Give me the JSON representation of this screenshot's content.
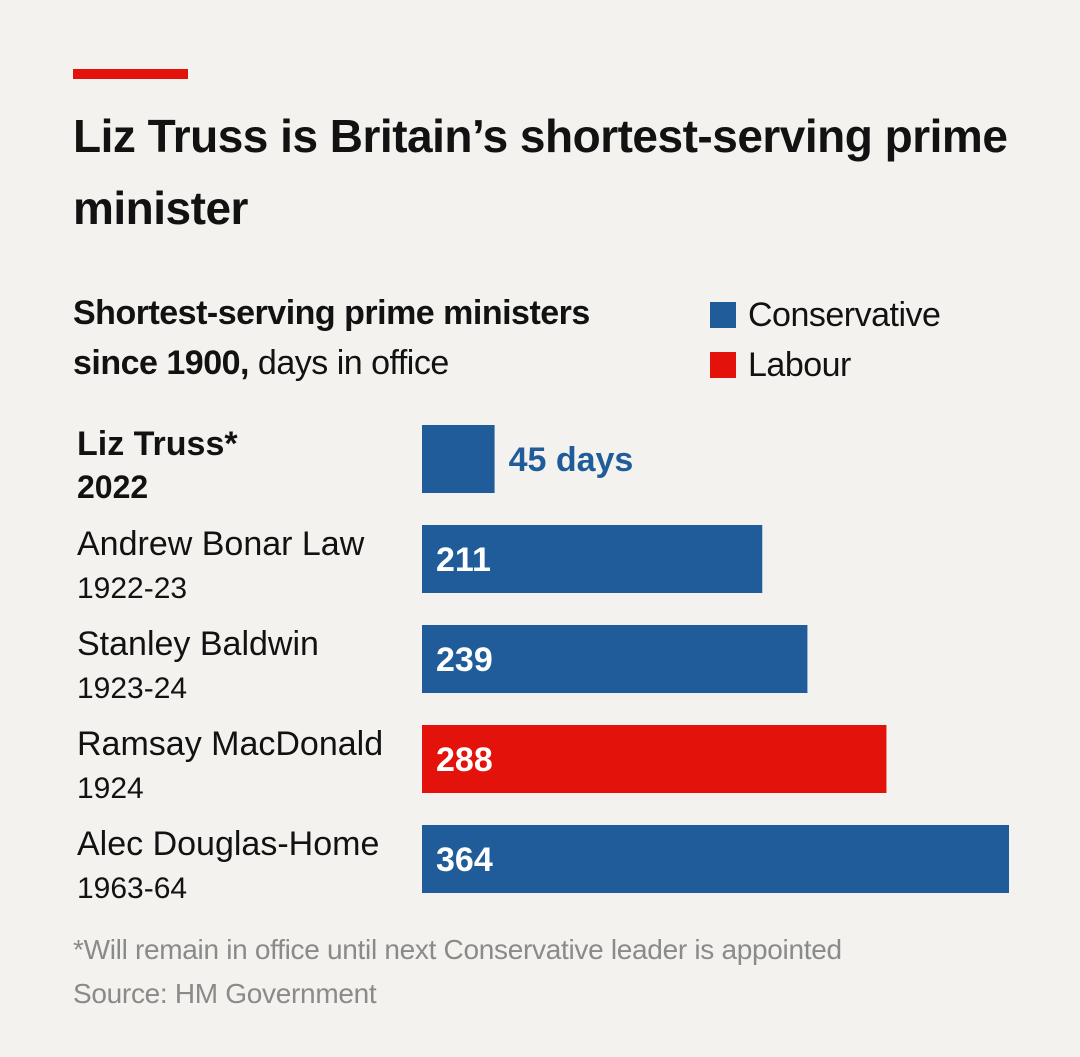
{
  "headline": "Liz Truss is Britain’s shortest-serving prime minister",
  "subtitle_bold": "Shortest-serving prime ministers since 1900,",
  "subtitle_rest": " days in office",
  "legend": [
    {
      "label": "Conservative",
      "color": "#1f5c99"
    },
    {
      "label": "Labour",
      "color": "#e3120b"
    }
  ],
  "chart_data": {
    "type": "bar",
    "orientation": "horizontal",
    "categories": [
      "Liz Truss*",
      "Andrew Bonar Law",
      "Stanley Baldwin",
      "Ramsay MacDonald",
      "Alec Douglas-Home"
    ],
    "years": [
      "2022",
      "1922-23",
      "1923-24",
      "1924",
      "1963-64"
    ],
    "values": [
      45,
      211,
      239,
      288,
      364
    ],
    "value_labels": [
      "45 days",
      "211",
      "239",
      "288",
      "364"
    ],
    "party": [
      "Conservative",
      "Conservative",
      "Conservative",
      "Labour",
      "Conservative"
    ],
    "colors": [
      "#1f5c99",
      "#1f5c99",
      "#1f5c99",
      "#e3120b",
      "#1f5c99"
    ],
    "highlight_index": 0,
    "xlim": [
      0,
      364
    ],
    "grid": false
  },
  "footnote": "*Will remain in office until next Conservative leader is appointed",
  "source": "Source: HM Government"
}
